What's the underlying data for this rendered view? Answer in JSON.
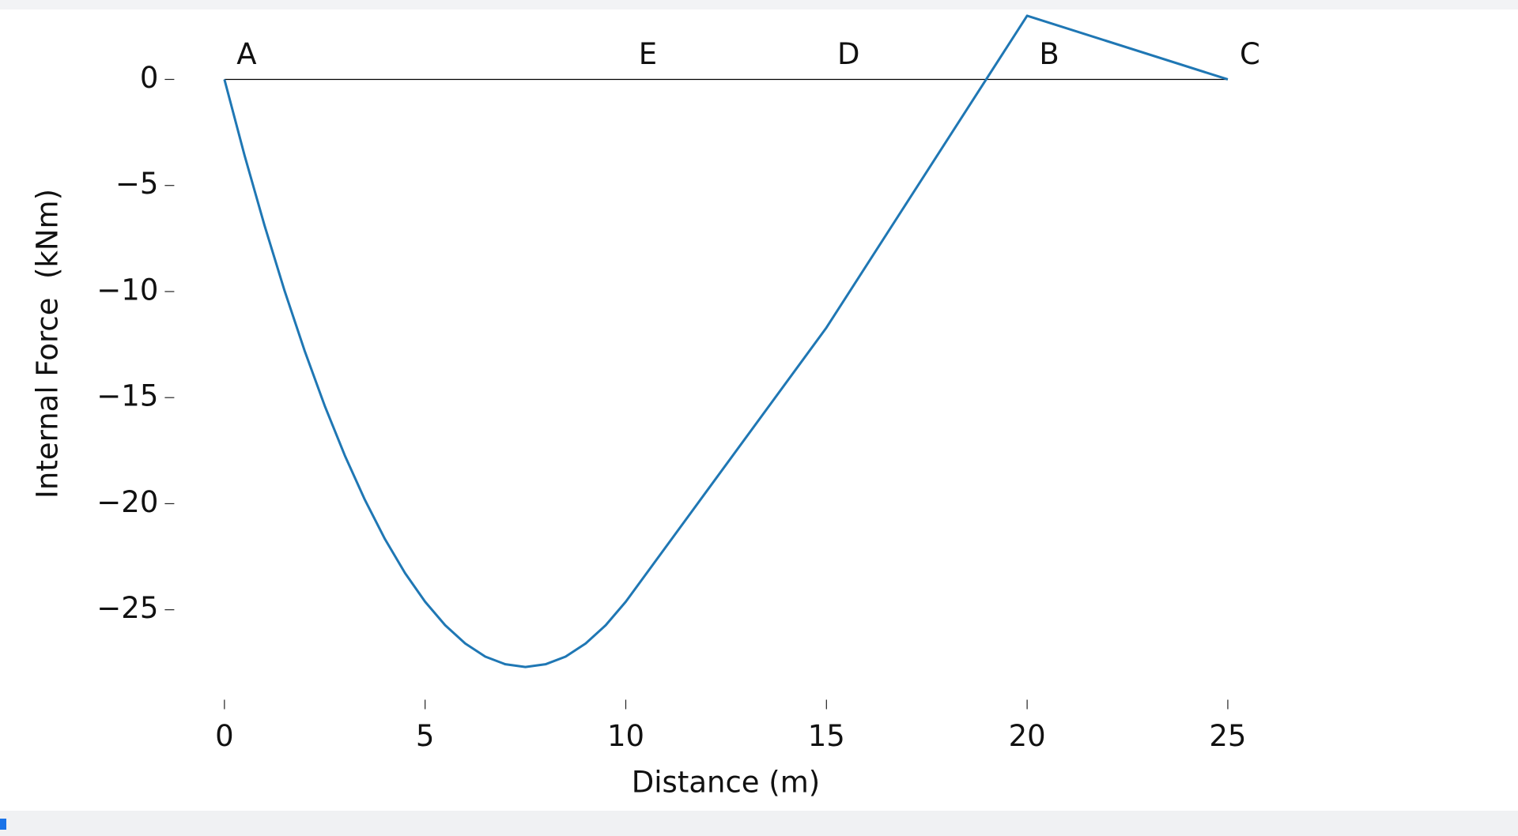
{
  "chart_data": {
    "type": "line",
    "x_label": "Distance (m)",
    "y_label": "Internal Force  (kNm)",
    "x": [
      0,
      0.5,
      1,
      1.5,
      2,
      2.5,
      3,
      3.5,
      4,
      4.5,
      5,
      5.5,
      6,
      6.5,
      7,
      7.5,
      8,
      8.5,
      9,
      9.5,
      10,
      15,
      20,
      25
    ],
    "series": [
      {
        "color": "#1f77b4",
        "values": [
          0,
          -3.57,
          -6.89,
          -9.97,
          -12.8,
          -15.39,
          -17.73,
          -19.82,
          -21.67,
          -23.27,
          -24.62,
          -25.73,
          -26.59,
          -27.21,
          -27.57,
          -27.7,
          -27.57,
          -27.21,
          -26.59,
          -25.73,
          -24.62,
          -11.7,
          3,
          0
        ]
      }
    ],
    "annotations": [
      {
        "text": "A",
        "x": 0
      },
      {
        "text": "E",
        "x": 10
      },
      {
        "text": "D",
        "x": 15
      },
      {
        "text": "B",
        "x": 20
      },
      {
        "text": "C",
        "x": 25
      }
    ],
    "xlim": [
      -1.25,
      26.25
    ],
    "ylim": [
      -29.24,
      4.54
    ],
    "xticks": [
      0,
      5,
      10,
      15,
      20,
      25
    ],
    "yticks": [
      {
        "value": -25,
        "label": "−25"
      },
      {
        "value": -20,
        "label": "−20"
      },
      {
        "value": -15,
        "label": "−15"
      },
      {
        "value": -10,
        "label": "−10"
      },
      {
        "value": -5,
        "label": "−5"
      },
      0
    ]
  }
}
